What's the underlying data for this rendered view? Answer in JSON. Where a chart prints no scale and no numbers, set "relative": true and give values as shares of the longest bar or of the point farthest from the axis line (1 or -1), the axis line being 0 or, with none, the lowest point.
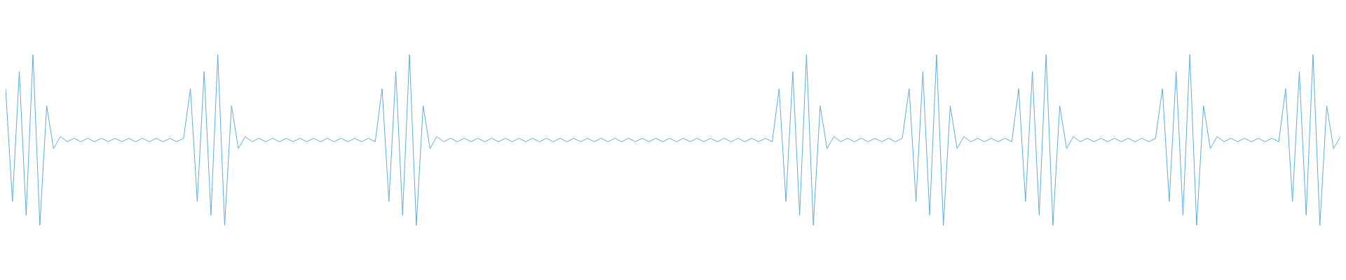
{
  "chart_data": {
    "type": "line",
    "relative": true,
    "categories": [
      null,
      null,
      null,
      null,
      null,
      null,
      null,
      null,
      null,
      null,
      null,
      null,
      null,
      null,
      null,
      null,
      null,
      null,
      null,
      null,
      null,
      null,
      null,
      null,
      null,
      null,
      null,
      null,
      null,
      null,
      null,
      null,
      null,
      null,
      null,
      null,
      null,
      null,
      null,
      null,
      null,
      null,
      null,
      null,
      null,
      null,
      null,
      null,
      null,
      null,
      null,
      null,
      null,
      null,
      null,
      null,
      null,
      null,
      null,
      null,
      null,
      null,
      null,
      null,
      null,
      null,
      null,
      null,
      null,
      null,
      null,
      null,
      null,
      null,
      null,
      null,
      null,
      null,
      null,
      null,
      null,
      null,
      null,
      null,
      null,
      null,
      null,
      null,
      null,
      null,
      null,
      null,
      null,
      null,
      null,
      null,
      null,
      null,
      null,
      null,
      null,
      null,
      null,
      null,
      null,
      null,
      null,
      null,
      null,
      null,
      null,
      null,
      null,
      null,
      null,
      null,
      null,
      null,
      null,
      null,
      null,
      null,
      null,
      null,
      null,
      null,
      null,
      null,
      null,
      null,
      null,
      null,
      null,
      null,
      null,
      null,
      null,
      null,
      null,
      null,
      null,
      null,
      null,
      null,
      null,
      null,
      null,
      null,
      null,
      null,
      null,
      null,
      null,
      null,
      null,
      null,
      null,
      null,
      null,
      null,
      null,
      null,
      null,
      null,
      null,
      null,
      null,
      null,
      null,
      null,
      null,
      null,
      null,
      null,
      null,
      null,
      null,
      null,
      null,
      null,
      null,
      null,
      null,
      null,
      null,
      null,
      null,
      null,
      null,
      null,
      null,
      null,
      null,
      null,
      null,
      null
    ],
    "series": [
      {
        "color": "#5dade2",
        "values": [
          0.8,
          0.14,
          0.9,
          0.06,
          1,
          0,
          0.7,
          0.45,
          0.52,
          0.49,
          0.51,
          0.49,
          0.51,
          0.49,
          0.51,
          0.49,
          0.51,
          0.49,
          0.51,
          0.49,
          0.51,
          0.49,
          0.51,
          0.49,
          0.51,
          0.49,
          0.51,
          0.8,
          0.14,
          0.9,
          0.06,
          1,
          0,
          0.7,
          0.45,
          0.52,
          0.49,
          0.51,
          0.49,
          0.51,
          0.49,
          0.51,
          0.49,
          0.51,
          0.49,
          0.51,
          0.49,
          0.51,
          0.49,
          0.51,
          0.49,
          0.51,
          0.49,
          0.51,
          0.49,
          0.8,
          0.14,
          0.9,
          0.06,
          1,
          0,
          0.7,
          0.45,
          0.52,
          0.49,
          0.51,
          0.49,
          0.51,
          0.49,
          0.51,
          0.49,
          0.51,
          0.49,
          0.51,
          0.49,
          0.51,
          0.49,
          0.51,
          0.49,
          0.51,
          0.49,
          0.51,
          0.49,
          0.51,
          0.49,
          0.51,
          0.49,
          0.51,
          0.49,
          0.51,
          0.49,
          0.51,
          0.49,
          0.51,
          0.49,
          0.51,
          0.49,
          0.51,
          0.49,
          0.51,
          0.49,
          0.51,
          0.49,
          0.51,
          0.49,
          0.51,
          0.49,
          0.51,
          0.49,
          0.51,
          0.49,
          0.51,
          0.49,
          0.8,
          0.14,
          0.9,
          0.06,
          1,
          0,
          0.7,
          0.45,
          0.52,
          0.49,
          0.51,
          0.49,
          0.51,
          0.49,
          0.51,
          0.49,
          0.51,
          0.49,
          0.51,
          0.8,
          0.14,
          0.9,
          0.06,
          1,
          0,
          0.7,
          0.45,
          0.52,
          0.49,
          0.51,
          0.49,
          0.51,
          0.49,
          0.51,
          0.49,
          0.8,
          0.14,
          0.9,
          0.06,
          1,
          0,
          0.7,
          0.45,
          0.52,
          0.49,
          0.51,
          0.49,
          0.51,
          0.49,
          0.51,
          0.49,
          0.51,
          0.49,
          0.51,
          0.49,
          0.51,
          0.8,
          0.14,
          0.9,
          0.06,
          1,
          0,
          0.7,
          0.45,
          0.52,
          0.49,
          0.51,
          0.49,
          0.51,
          0.49,
          0.51,
          0.49,
          0.51,
          0.49,
          0.8,
          0.14,
          0.9,
          0.06,
          1,
          0,
          0.7,
          0.45,
          0.52
        ]
      }
    ]
  }
}
